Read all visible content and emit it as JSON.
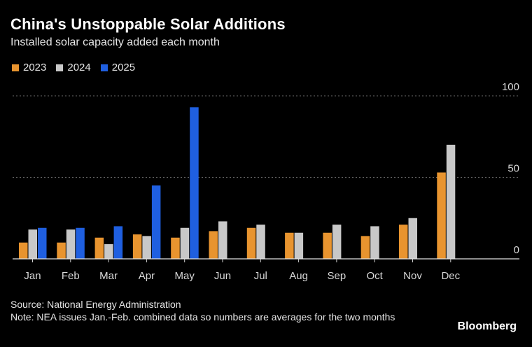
{
  "chart_data": {
    "type": "bar",
    "title": "China's Unstoppable Solar Additions",
    "subtitle": "Installed solar capacity added each month",
    "categories": [
      "Jan",
      "Feb",
      "Mar",
      "Apr",
      "May",
      "Jun",
      "Jul",
      "Aug",
      "Sep",
      "Oct",
      "Nov",
      "Dec"
    ],
    "series": [
      {
        "name": "2023",
        "color": "#e8942f",
        "values": [
          10,
          10,
          13,
          15,
          13,
          17,
          19,
          16,
          16,
          14,
          21,
          53
        ]
      },
      {
        "name": "2024",
        "color": "#c8c8c8",
        "values": [
          18,
          18,
          9,
          14,
          19,
          23,
          21,
          16,
          21,
          20,
          25,
          70
        ]
      },
      {
        "name": "2025",
        "color": "#1f5fe0",
        "values": [
          19,
          19,
          20,
          45,
          93,
          null,
          null,
          null,
          null,
          null,
          null,
          null
        ]
      }
    ],
    "ylim": [
      0,
      100
    ],
    "yticks": [
      0,
      50,
      100
    ],
    "xlabel": "",
    "ylabel": "",
    "grid": true,
    "legend_position": "top-left"
  },
  "footer": {
    "source": "Source: National Energy Administration",
    "note": "Note: NEA issues Jan.-Feb. combined data so numbers are averages for the two months",
    "brand": "Bloomberg"
  }
}
